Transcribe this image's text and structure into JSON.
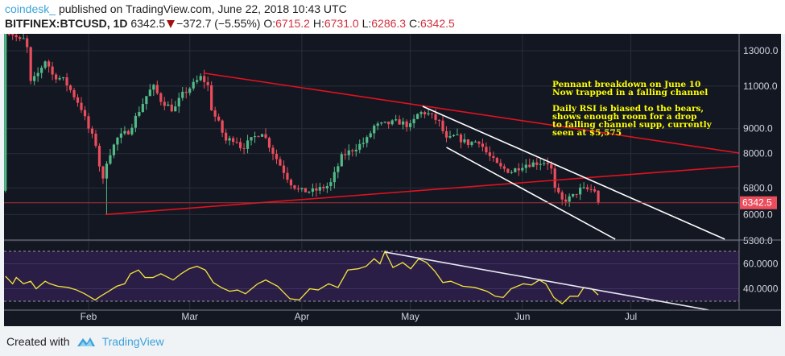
{
  "header": {
    "user": "coindesk_",
    "published": "published on TradingView.com, June 22, 2018 10:43 UTC",
    "symbol": "BITFINEX:BTCUSD, 1D",
    "last": "6342.5",
    "change": "−372.7 (−5.55%)",
    "o_label": "O:",
    "o": "6715.2",
    "h_label": "H:",
    "h": "6731.0",
    "l_label": "L:",
    "l": "6286.3",
    "c_label": "C:",
    "c": "6342.5"
  },
  "annotation": {
    "line1": "Pennant breakdown on June 10",
    "line2": "Now trapped in a falling channel",
    "line3": "Daily RSI is biased to the bears,",
    "line4": "shows enough room for a drop",
    "line5": "to falling channel supp, currently",
    "line6": "seen at $5,575"
  },
  "footer": {
    "created_with": "Created with",
    "brand": "TradingView"
  },
  "colors": {
    "up": "#53b987",
    "down": "#eb4d5c",
    "bg": "#131722",
    "rsi_line": "#f5e33a",
    "rsi_band": "#2a1e47",
    "annotation": "#ffff00"
  },
  "chart_data": {
    "type": "candlestick",
    "symbol": "BITFINEX:BTCUSD",
    "interval": "1D",
    "x_unit": "day of year 2018",
    "price_scale": "log",
    "y_ticks": [
      "13000.0",
      "11000.0",
      "9000.0",
      "8000.0",
      "6800.0",
      "6000.0",
      "5300.0"
    ],
    "y_tick_values": [
      13000,
      11000,
      9000,
      8000,
      6800,
      6000,
      5300
    ],
    "x_ticks": [
      {
        "label": "Feb",
        "doy": 32
      },
      {
        "label": "Mar",
        "doy": 60
      },
      {
        "label": "Apr",
        "doy": 91
      },
      {
        "label": "May",
        "doy": 121
      },
      {
        "label": "Jun",
        "doy": 152
      },
      {
        "label": "Jul",
        "doy": 182
      }
    ],
    "last_price_label": "6342.5",
    "last_candle": {
      "open": 6715.2,
      "high": 6731.0,
      "low": 6286.3,
      "close": 6342.5
    },
    "close_anchors": [
      [
        9,
        14500
      ],
      [
        10.4,
        14200
      ],
      [
        13.1,
        13600
      ],
      [
        14.8,
        13800
      ],
      [
        15.7,
        11100
      ],
      [
        17.5,
        11500
      ],
      [
        20.2,
        12500
      ],
      [
        22,
        11600
      ],
      [
        25.3,
        11300
      ],
      [
        29.8,
        10000
      ],
      [
        32,
        9000
      ],
      [
        34.2,
        8300
      ],
      [
        35.8,
        6900
      ],
      [
        37.1,
        7800
      ],
      [
        40,
        8600
      ],
      [
        43.1,
        8900
      ],
      [
        48,
        10500
      ],
      [
        49.8,
        11000
      ],
      [
        52,
        10300
      ],
      [
        55.6,
        9800
      ],
      [
        57.6,
        10500
      ],
      [
        60.5,
        11000
      ],
      [
        63.2,
        11500
      ],
      [
        65,
        11000
      ],
      [
        66.1,
        9800
      ],
      [
        68.1,
        9200
      ],
      [
        69.9,
        8500
      ],
      [
        72.7,
        8600
      ],
      [
        74.3,
        8200
      ],
      [
        79.9,
        8900
      ],
      [
        83.2,
        8000
      ],
      [
        87.7,
        7000
      ],
      [
        90.3,
        6700
      ],
      [
        94.3,
        6700
      ],
      [
        98.8,
        6900
      ],
      [
        102.1,
        7900
      ],
      [
        105.5,
        8200
      ],
      [
        108.8,
        8500
      ],
      [
        111,
        9100
      ],
      [
        114.4,
        9200
      ],
      [
        117.7,
        9300
      ],
      [
        121.1,
        9100
      ],
      [
        123.3,
        9700
      ],
      [
        125.5,
        9700
      ],
      [
        128.9,
        9300
      ],
      [
        131.1,
        8500
      ],
      [
        133.3,
        8700
      ],
      [
        136.7,
        8400
      ],
      [
        140,
        8500
      ],
      [
        142.2,
        8000
      ],
      [
        145.6,
        7500
      ],
      [
        148.9,
        7350
      ],
      [
        152.3,
        7600
      ],
      [
        155.6,
        7650
      ],
      [
        158.5,
        7700
      ],
      [
        159.8,
        7600
      ],
      [
        160.7,
        6800
      ],
      [
        163,
        6400
      ],
      [
        165.6,
        6500
      ],
      [
        167.8,
        6750
      ],
      [
        171.2,
        6750
      ],
      [
        172,
        6715
      ]
    ],
    "trendlines": [
      {
        "name": "pennant-upper",
        "color": "#e0121f",
        "from": [
          63.8,
          11700
        ],
        "to": [
          212,
          8020
        ]
      },
      {
        "name": "pennant-lower",
        "color": "#e0121f",
        "from": [
          36.7,
          6000
        ],
        "to": [
          212,
          7540
        ]
      },
      {
        "name": "channel-upper",
        "color": "#ffffff",
        "from": [
          124.4,
          10000
        ],
        "to": [
          209,
          5300
        ]
      },
      {
        "name": "channel-lower",
        "color": "#ffffff",
        "from": [
          131,
          8240
        ],
        "to": [
          178.5,
          5300
        ]
      }
    ],
    "rsi": {
      "upper_band": 70,
      "lower_band": 30,
      "y_ticks": [
        "60.0000",
        "40.0000"
      ],
      "y_tick_values": [
        60,
        40
      ],
      "values": [
        [
          9,
          50
        ],
        [
          11,
          44
        ],
        [
          12,
          49
        ],
        [
          14,
          44
        ],
        [
          16,
          46
        ],
        [
          17.5,
          40
        ],
        [
          20,
          46
        ],
        [
          21.3,
          44
        ],
        [
          23.5,
          42
        ],
        [
          26.4,
          41
        ],
        [
          28.7,
          39
        ],
        [
          30.9,
          36
        ],
        [
          33.8,
          31
        ],
        [
          35.3,
          34
        ],
        [
          37.6,
          38
        ],
        [
          39.8,
          42
        ],
        [
          42,
          44
        ],
        [
          43.6,
          52
        ],
        [
          45.8,
          55
        ],
        [
          47.6,
          49
        ],
        [
          49.8,
          49
        ],
        [
          52,
          52
        ],
        [
          55.4,
          47
        ],
        [
          57.6,
          52
        ],
        [
          59.8,
          56
        ],
        [
          62,
          58
        ],
        [
          64.3,
          55
        ],
        [
          66.5,
          45
        ],
        [
          68.7,
          41
        ],
        [
          71,
          38
        ],
        [
          73.2,
          39
        ],
        [
          75.4,
          36
        ],
        [
          78.8,
          44
        ],
        [
          81,
          47
        ],
        [
          84.3,
          42
        ],
        [
          87.7,
          32
        ],
        [
          90.3,
          31
        ],
        [
          93.2,
          40
        ],
        [
          95.5,
          39
        ],
        [
          98.4,
          44
        ],
        [
          101,
          41
        ],
        [
          103.7,
          55
        ],
        [
          106.6,
          56
        ],
        [
          108.8,
          58
        ],
        [
          111,
          64
        ],
        [
          112.6,
          60
        ],
        [
          114,
          70
        ],
        [
          116.2,
          57
        ],
        [
          118.9,
          61
        ],
        [
          121.1,
          56
        ],
        [
          123.3,
          64
        ],
        [
          125.5,
          61
        ],
        [
          127.8,
          54
        ],
        [
          130,
          45
        ],
        [
          132.2,
          46
        ],
        [
          135.5,
          42
        ],
        [
          138.9,
          41
        ],
        [
          142.2,
          38
        ],
        [
          144.5,
          34
        ],
        [
          146.7,
          33
        ],
        [
          148.9,
          40
        ],
        [
          152.3,
          44
        ],
        [
          154.5,
          43
        ],
        [
          156.7,
          47
        ],
        [
          158.5,
          44
        ],
        [
          160.7,
          33
        ],
        [
          163,
          28
        ],
        [
          165.2,
          34
        ],
        [
          167.4,
          34
        ],
        [
          169,
          41
        ],
        [
          171.2,
          40
        ],
        [
          173,
          35
        ]
      ],
      "trendline": {
        "from": [
          114,
          69.4
        ],
        "to": [
          203.5,
          23
        ]
      }
    }
  }
}
